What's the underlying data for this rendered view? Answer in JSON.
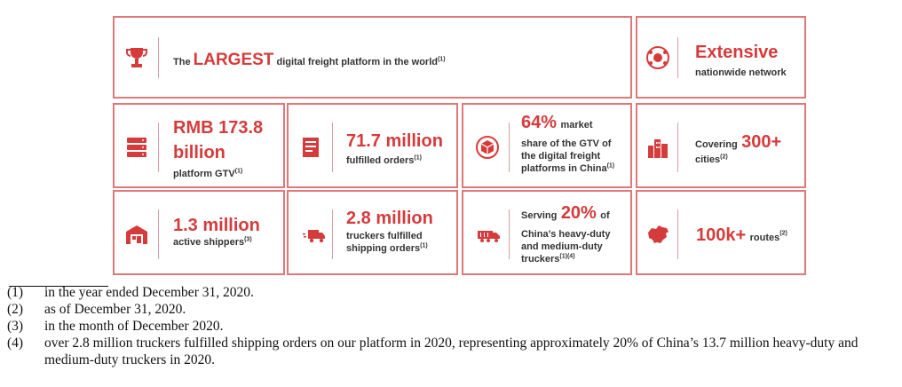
{
  "colors": {
    "accent": "#d63b3b",
    "border": "#e0787a",
    "text": "#333333"
  },
  "tiles": {
    "largest": {
      "icon": "trophy-icon",
      "pre": "The",
      "highlight": "LARGEST",
      "post": "digital freight platform in the world",
      "sup": "(1)"
    },
    "extensive": {
      "icon": "globe-network-icon",
      "title": "Extensive",
      "sub": "nationwide network"
    },
    "gtv": {
      "icon": "server-stack-icon",
      "value1": "RMB 173.8",
      "value2": "billion",
      "label": "platform GTV",
      "sup": "(1)"
    },
    "orders": {
      "icon": "document-list-icon",
      "value": "71.7 million",
      "label": "fulfilled orders",
      "sup": "(1)"
    },
    "share": {
      "icon": "cube-icon",
      "value": "64%",
      "word": "market",
      "line2": "share of the GTV of",
      "line3": "the digital freight",
      "line4": "platforms in China",
      "sup": "(1)"
    },
    "cities": {
      "icon": "city-buildings-icon",
      "pre": "Covering",
      "value": "300+",
      "label": "cities",
      "sup": "(2)"
    },
    "shippers": {
      "icon": "warehouse-icon",
      "value": "1.3 million",
      "label": "active shippers",
      "sup": "(3)"
    },
    "truckers": {
      "icon": "truck-icon",
      "value": "2.8 million",
      "line1": "truckers fulfilled",
      "line2": "shipping orders",
      "sup": "(1)"
    },
    "serving": {
      "icon": "heavy-truck-icon",
      "pre": "Serving",
      "value": "20%",
      "post": "of",
      "line2": "China’s heavy-duty",
      "line3": "and medium-duty",
      "line4": "truckers",
      "sup": "(1)(4)"
    },
    "routes": {
      "icon": "china-map-icon",
      "value": "100k+",
      "label": "routes",
      "sup": "(2)"
    }
  },
  "footnotes": [
    {
      "num": "(1)",
      "text": "in the year ended December 31, 2020."
    },
    {
      "num": "(2)",
      "text": "as of December 31, 2020."
    },
    {
      "num": "(3)",
      "text": "in the month of December 2020."
    },
    {
      "num": "(4)",
      "text": "over 2.8 million truckers fulfilled shipping orders on our platform in 2020, representing approximately 20% of China’s 13.7 million heavy-duty and medium-duty truckers in 2020."
    }
  ]
}
